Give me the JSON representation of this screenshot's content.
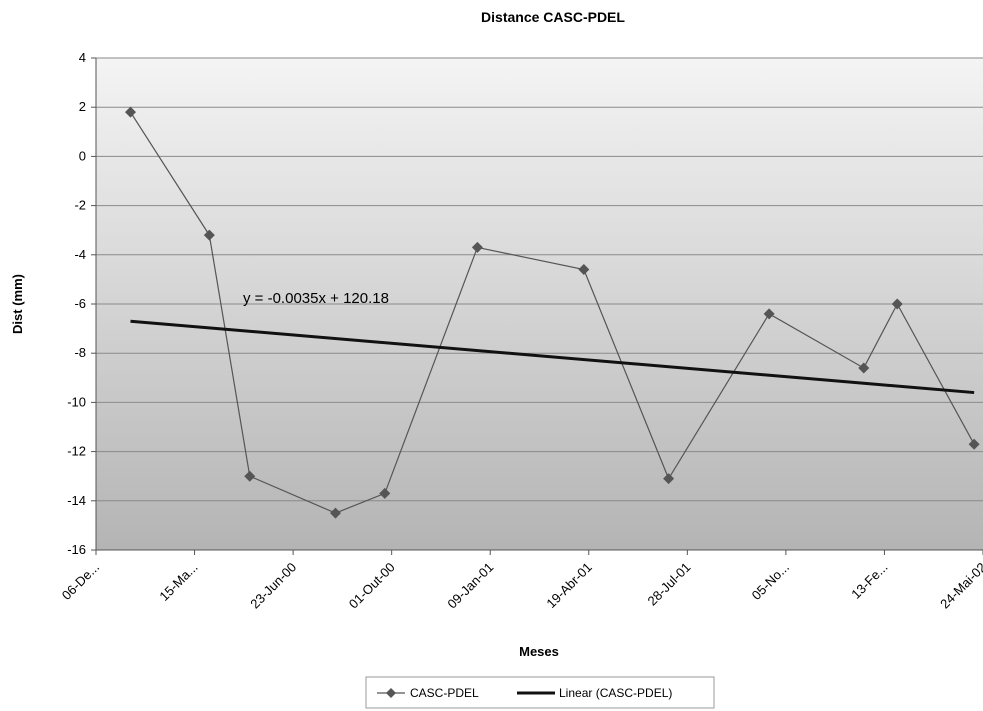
{
  "chart_data": {
    "type": "line",
    "title": "Distance CASC-PDEL",
    "xlabel": "Meses",
    "ylabel": "Dist (mm)",
    "ylim": [
      -16,
      4
    ],
    "yticks": [
      4,
      2,
      0,
      -2,
      -4,
      -6,
      -8,
      -10,
      -12,
      -14,
      -16
    ],
    "x_tick_labels": [
      "06-De...",
      "15-Ma...",
      "23-Jun-00",
      "01-Out-00",
      "09-Jan-01",
      "19-Abr-01",
      "28-Jul-01",
      "05-No...",
      "13-Fe...",
      "24-Mai-02"
    ],
    "x_start": "1999-12-06",
    "x_end": "2002-05-24",
    "grid": true,
    "legend_position": "bottom",
    "series": [
      {
        "name": "CASC-PDEL",
        "color": "#555555",
        "marker": "diamond",
        "points": [
          {
            "x": "2000-01-10",
            "y": 1.8
          },
          {
            "x": "2000-03-30",
            "y": -3.2
          },
          {
            "x": "2000-05-10",
            "y": -13.0
          },
          {
            "x": "2000-08-05",
            "y": -14.5
          },
          {
            "x": "2000-09-24",
            "y": -13.7
          },
          {
            "x": "2000-12-27",
            "y": -3.7
          },
          {
            "x": "2001-04-14",
            "y": -4.6
          },
          {
            "x": "2001-07-09",
            "y": -13.1
          },
          {
            "x": "2001-10-19",
            "y": -6.4
          },
          {
            "x": "2002-01-23",
            "y": -8.6
          },
          {
            "x": "2002-02-26",
            "y": -6.0
          },
          {
            "x": "2002-05-15",
            "y": -11.7
          }
        ]
      },
      {
        "name": "Linear (CASC-PDEL)",
        "color": "#111111",
        "kind": "trendline",
        "equation": "y = -0.0035x + 120.18",
        "points": [
          {
            "x": "2000-01-10",
            "y": -6.7
          },
          {
            "x": "2002-05-15",
            "y": -9.6
          }
        ]
      }
    ]
  }
}
